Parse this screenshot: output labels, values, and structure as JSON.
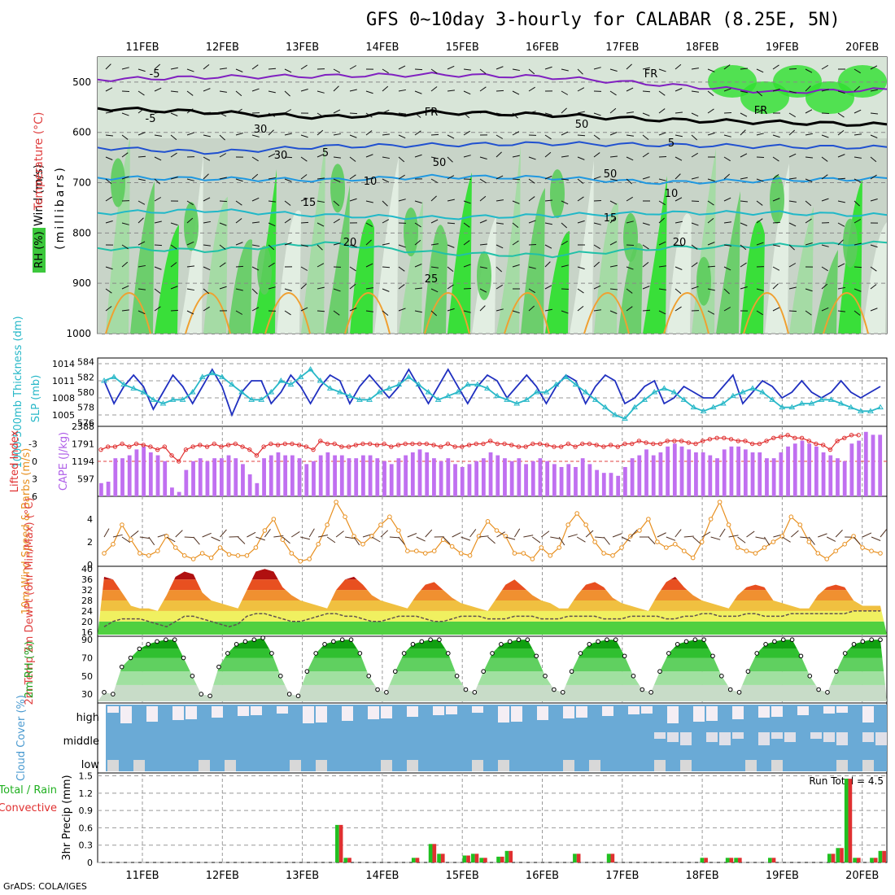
{
  "title": "GFS 0~10day 3-hourly for CALABAR (8.25E, 5N)",
  "credit": "GrADS: COLA/IGES",
  "colors": {
    "rh_green": "#3cc83c",
    "purple": "#a050e8",
    "navy": "#2838c0",
    "cyan": "#28b8c8",
    "orange": "#f0a030",
    "red": "#e03030",
    "sky": "#6aaad6"
  },
  "chart_data": [
    {
      "type": "heatmap",
      "title": "",
      "x_dates": [
        "11FEB",
        "12FEB",
        "13FEB",
        "14FEB",
        "15FEB",
        "16FEB",
        "17FEB",
        "18FEB",
        "19FEB",
        "20FEB"
      ],
      "y_axis_label": "(millibars)",
      "y_ticks": [
        500,
        600,
        700,
        800,
        900,
        1000
      ],
      "left_labels": {
        "wind": "Wind (m/s)",
        "temperature": "Temperature (°C)",
        "rh": "RH (%)"
      },
      "isotherm_labels": [
        "-5",
        "FR",
        "-5",
        "FR",
        "FR",
        "5",
        "5",
        "10",
        "10",
        "15",
        "15",
        "20",
        "20",
        "25",
        "30",
        "50",
        "50",
        "30",
        "50"
      ],
      "isotherms": [
        {
          "label": "-5",
          "color": "#8020c0",
          "p": [
            495,
            490,
            488,
            485,
            490,
            505,
            520,
            515
          ]
        },
        {
          "label": "FR",
          "color": "#000000",
          "p": [
            552,
            560,
            570,
            560,
            565,
            575,
            580,
            585
          ]
        },
        {
          "label": "5",
          "color": "#2050d0",
          "p": [
            630,
            640,
            628,
            625,
            622,
            625,
            628,
            630
          ]
        },
        {
          "label": "10",
          "color": "#2098e0",
          "p": [
            690,
            692,
            695,
            688,
            690,
            700,
            695,
            692
          ]
        },
        {
          "label": "15",
          "color": "#20b8c8",
          "p": [
            760,
            755,
            765,
            770,
            765,
            760,
            760,
            765
          ]
        },
        {
          "label": "20",
          "color": "#20c0a8",
          "p": [
            830,
            835,
            820,
            840,
            845,
            830,
            825,
            820
          ]
        }
      ]
    },
    {
      "type": "line",
      "title": "",
      "ylabel_left": "1000-500mb Thickness (dm)",
      "ylabel_right": "SLP (mb)",
      "left_ticks": [
        576,
        578,
        580,
        582,
        584
      ],
      "right_ticks": [
        1005,
        1008,
        1011,
        1014
      ],
      "series": [
        {
          "name": "SLP (mb)",
          "color": "#2030c0",
          "axis": "right",
          "values": [
            1011,
            1007,
            1010,
            1012,
            1010,
            1006,
            1009,
            1012,
            1010,
            1007,
            1010,
            1013,
            1010,
            1005,
            1009,
            1011,
            1011,
            1007,
            1009,
            1012,
            1010,
            1007,
            1010,
            1012,
            1011,
            1007,
            1010,
            1012,
            1010,
            1008,
            1010,
            1013,
            1010,
            1007,
            1010,
            1013,
            1010,
            1007,
            1010,
            1012,
            1011,
            1008,
            1010,
            1012,
            1010,
            1007,
            1010,
            1012,
            1011,
            1007,
            1010,
            1012,
            1011,
            1007,
            1008,
            1010,
            1011,
            1007,
            1008,
            1010,
            1009,
            1008,
            1008,
            1010,
            1012,
            1007,
            1009,
            1011,
            1010,
            1008,
            1009,
            1011,
            1009,
            1008,
            1009,
            1011,
            1009,
            1008,
            1009,
            1010
          ]
        },
        {
          "name": "Thickness (dm)",
          "color": "#28b8c8",
          "axis": "left",
          "values": [
            581.5,
            582,
            581,
            580.5,
            580,
            579,
            578.5,
            579,
            579,
            580,
            582,
            582.5,
            582,
            581,
            580,
            579,
            579,
            580,
            581.5,
            581,
            582,
            583,
            581.5,
            580.5,
            580,
            579.5,
            579,
            579,
            580,
            580.5,
            581,
            582,
            581,
            580,
            579,
            579.5,
            580,
            581,
            581,
            580.5,
            579.5,
            579,
            578.5,
            579,
            580,
            580,
            581,
            582,
            581,
            580,
            579,
            578,
            577,
            576.5,
            578,
            579,
            580,
            580.5,
            580,
            579,
            578,
            577.5,
            578,
            578.5,
            579.5,
            580,
            580.5,
            580,
            579,
            578,
            578,
            578.5,
            578.5,
            579,
            579,
            578.5,
            578,
            577.5,
            577.5,
            578
          ]
        }
      ]
    },
    {
      "type": "bar",
      "title": "",
      "ylabel_left": "Lifted Index",
      "ylabel_right": "CAPE (J/kg)",
      "li_ticks": [
        -3,
        0,
        3,
        6
      ],
      "cape_ticks": [
        597,
        1194,
        1791,
        2388
      ],
      "cape_values": [
        450,
        500,
        1300,
        1300,
        1400,
        1600,
        1700,
        1500,
        1400,
        1200,
        300,
        150,
        900,
        1200,
        1300,
        1200,
        1300,
        1300,
        1400,
        1300,
        1100,
        750,
        450,
        1300,
        1400,
        1500,
        1400,
        1400,
        1300,
        1100,
        1200,
        1400,
        1500,
        1400,
        1400,
        1300,
        1300,
        1400,
        1400,
        1300,
        1200,
        1100,
        1300,
        1400,
        1500,
        1600,
        1500,
        1300,
        1200,
        1300,
        1100,
        1000,
        1100,
        1200,
        1300,
        1500,
        1400,
        1300,
        1200,
        1300,
        1100,
        1200,
        1300,
        1200,
        1100,
        1000,
        1100,
        1000,
        1300,
        1100,
        900,
        800,
        800,
        700,
        1000,
        1300,
        1400,
        1600,
        1400,
        1500,
        1700,
        1800,
        1700,
        1600,
        1500,
        1500,
        1400,
        1300,
        1600,
        1700,
        1700,
        1600,
        1500,
        1500,
        1300,
        1300,
        1500,
        1700,
        1800,
        1900,
        1800,
        1700,
        1500,
        1400,
        1300,
        1200,
        1800,
        1900,
        2200,
        2100,
        2100
      ],
      "li_values": [
        -2,
        -2.5,
        -2.5,
        -3,
        -2.5,
        -3,
        -2.8,
        -2.5,
        -2,
        -2.5,
        -1,
        0,
        -2,
        -2.5,
        -2.8,
        -2.5,
        -3,
        -2.5,
        -2.8,
        -3,
        -2.5,
        -2,
        -1,
        -2.5,
        -3,
        -2.8,
        -3,
        -3,
        -2.8,
        -2.5,
        -2,
        -3.5,
        -3,
        -3,
        -2.5,
        -2.5,
        -2.8,
        -3,
        -3,
        -2.8,
        -3,
        -2.5,
        -2.8,
        -3,
        -3,
        -3,
        -3,
        -2.8,
        -2.5,
        -3,
        -2.5,
        -2.5,
        -2.8,
        -3,
        -3,
        -3.5,
        -3,
        -3,
        -2.8,
        -2.5,
        -2.5,
        -3,
        -3,
        -2.8,
        -2.5,
        -2.5,
        -3,
        -2.5,
        -3,
        -3,
        -2.8,
        -2.5,
        -2.8,
        -2.5,
        -3,
        -3,
        -3.5,
        -3.2,
        -3,
        -3,
        -3.5,
        -3.5,
        -3.5,
        -3.2,
        -3,
        -3.5,
        -3.8,
        -4,
        -4,
        -3.8,
        -3.5,
        -3.5,
        -3,
        -3,
        -3.5,
        -4,
        -4.2,
        -4.5,
        -4,
        -4,
        -3.5,
        -3,
        -2.8,
        -2,
        -3.5,
        -4,
        -4.5,
        -4.5
      ]
    },
    {
      "type": "line",
      "title": "",
      "ylabel": "10m Wind Speed & Barbs (m/s)",
      "y_ticks": [
        0,
        2,
        4
      ],
      "series": [
        {
          "name": "10m Wind Speed",
          "color": "#e89020",
          "values": [
            1,
            1.8,
            3.5,
            2.2,
            1,
            0.8,
            1.2,
            2.5,
            1.5,
            0.8,
            0.5,
            1,
            0.6,
            1.5,
            0.9,
            0.8,
            0.8,
            1.5,
            3,
            4,
            2.2,
            1,
            0.3,
            0.5,
            1.8,
            3.5,
            5.5,
            4.2,
            2.5,
            1.8,
            2.5,
            3.5,
            4.2,
            3,
            1.2,
            1.2,
            1,
            1.2,
            2.2,
            1.6,
            1,
            0.8,
            2.5,
            3.8,
            3,
            2.5,
            1,
            1,
            0.5,
            1.5,
            0.8,
            1.5,
            3.5,
            4.5,
            3.5,
            2,
            1,
            0.8,
            1.5,
            2.5,
            3,
            4,
            2,
            1.5,
            1.8,
            1.2,
            0.6,
            2,
            4,
            5.5,
            3.5,
            1.5,
            1.2,
            1,
            1.5,
            2,
            2.5,
            4.2,
            3.5,
            2,
            1,
            0.5,
            1.2,
            1.8,
            2.5,
            1.5,
            1.2,
            1
          ]
        }
      ]
    },
    {
      "type": "area",
      "title": "",
      "ylabel": "2m Temp 2m DewPt (6hr Min/Max) (°C)",
      "y_ticks": [
        16,
        20,
        24,
        28,
        32,
        36,
        40
      ],
      "temp": [
        37,
        36,
        31,
        26,
        25,
        25,
        24,
        30,
        37,
        39,
        38,
        31,
        28,
        27,
        26,
        25,
        32,
        39,
        40,
        39,
        33,
        30,
        28,
        27,
        26,
        25,
        32,
        36,
        37,
        34,
        30,
        28,
        27,
        26,
        25,
        30,
        34,
        35,
        32,
        29,
        27,
        26,
        25,
        24,
        29,
        34,
        36,
        33,
        30,
        28,
        27,
        25,
        25,
        30,
        34,
        35,
        33,
        29,
        27,
        26,
        25,
        24,
        30,
        35,
        37,
        33,
        30,
        28,
        27,
        26,
        25,
        30,
        33,
        34,
        33,
        28,
        27,
        26,
        25,
        25,
        30,
        33,
        34,
        33,
        28,
        26,
        26,
        26
      ],
      "dewpoint": [
        18,
        20,
        21,
        21,
        21,
        20,
        19,
        18,
        20,
        22,
        22,
        21,
        20,
        19,
        18,
        19,
        22,
        23,
        23,
        22,
        21,
        20,
        20,
        21,
        22,
        23,
        23,
        22,
        22,
        21,
        20,
        20,
        21,
        22,
        22,
        22,
        21,
        20,
        20,
        21,
        22,
        22,
        22,
        21,
        21,
        21,
        22,
        22,
        22,
        21,
        21,
        21,
        22,
        22,
        22,
        22,
        21,
        21,
        21,
        22,
        22,
        22,
        22,
        21,
        21,
        22,
        22,
        23,
        23,
        22,
        22,
        22,
        23,
        23,
        22,
        22,
        22,
        23,
        23,
        23,
        23,
        23,
        23,
        23,
        24,
        24,
        24,
        24
      ]
    },
    {
      "type": "area",
      "title": "",
      "ylabel": "2m RH (%)",
      "y_ticks": [
        30,
        50,
        70,
        90
      ],
      "values": [
        32,
        30,
        60,
        70,
        80,
        85,
        88,
        90,
        90,
        70,
        50,
        30,
        28,
        60,
        75,
        85,
        88,
        90,
        92,
        75,
        50,
        30,
        28,
        55,
        75,
        85,
        88,
        90,
        90,
        75,
        50,
        35,
        32,
        55,
        75,
        85,
        88,
        90,
        90,
        75,
        50,
        35,
        32,
        55,
        75,
        85,
        88,
        90,
        90,
        72,
        50,
        35,
        32,
        55,
        75,
        85,
        88,
        90,
        90,
        72,
        50,
        35,
        32,
        55,
        75,
        85,
        88,
        90,
        90,
        72,
        50,
        35,
        32,
        55,
        75,
        85,
        88,
        90,
        90,
        72,
        50,
        35,
        32,
        55,
        75,
        85,
        88,
        90,
        90
      ]
    },
    {
      "type": "heatmap",
      "title": "",
      "ylabel": "Cloud Cover (%)",
      "rows": [
        "high",
        "middle",
        "low"
      ]
    },
    {
      "type": "bar",
      "title": "",
      "ylabel": "3hr Precip (mm)",
      "legend": [
        "Total / Rain",
        "Convective"
      ],
      "y_ticks": [
        0,
        0.3,
        0.6,
        0.9,
        1.2,
        1.5
      ],
      "annotation": "Run Total = 4.5",
      "precip": [
        0,
        0,
        0,
        0,
        0,
        0,
        0,
        0,
        0,
        0,
        0,
        0,
        0,
        0,
        0,
        0,
        0,
        0,
        0,
        0,
        0,
        0,
        0,
        0,
        0,
        0,
        0,
        0,
        0.65,
        0.08,
        0,
        0,
        0,
        0,
        0,
        0,
        0,
        0.08,
        0,
        0.32,
        0.15,
        0,
        0,
        0.12,
        0.15,
        0.08,
        0,
        0.1,
        0.2,
        0,
        0,
        0,
        0,
        0,
        0,
        0,
        0.15,
        0,
        0,
        0,
        0.15,
        0,
        0,
        0,
        0,
        0,
        0,
        0,
        0,
        0,
        0,
        0.08,
        0,
        0,
        0.08,
        0.08,
        0,
        0,
        0,
        0.08,
        0,
        0,
        0,
        0,
        0,
        0,
        0.15,
        0.25,
        1.45,
        0.08,
        0,
        0.08,
        0.2
      ]
    }
  ]
}
